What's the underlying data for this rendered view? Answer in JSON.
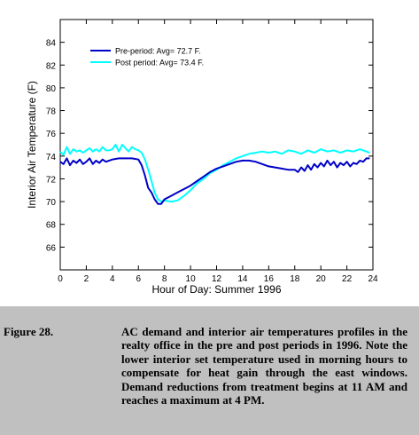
{
  "chart_data": {
    "type": "line",
    "title": "",
    "xlabel": "Hour of Day: Summer 1996",
    "ylabel": "Interior Air Temperature (F)",
    "xlim": [
      0,
      24
    ],
    "ylim": [
      64,
      86
    ],
    "xticks": [
      0,
      2,
      4,
      6,
      8,
      10,
      12,
      14,
      16,
      18,
      20,
      22,
      24
    ],
    "yticks": [
      66,
      68,
      70,
      72,
      74,
      76,
      78,
      80,
      82,
      84
    ],
    "grid": false,
    "legend_position": "top-left",
    "series": [
      {
        "name": "Pre-period: Avg= 72.7 F.",
        "color": "#0000c8",
        "x": [
          0,
          0.25,
          0.5,
          0.75,
          1,
          1.25,
          1.5,
          1.75,
          2,
          2.25,
          2.5,
          2.75,
          3,
          3.25,
          3.5,
          3.75,
          4,
          4.5,
          5,
          5.5,
          6,
          6.25,
          6.5,
          6.75,
          7,
          7.25,
          7.5,
          7.75,
          8,
          8.5,
          9,
          9.5,
          10,
          10.5,
          11,
          11.5,
          12,
          12.5,
          13,
          13.5,
          14,
          14.5,
          15,
          15.5,
          16,
          16.5,
          17,
          17.5,
          18,
          18.25,
          18.5,
          18.75,
          19,
          19.25,
          19.5,
          19.75,
          20,
          20.25,
          20.5,
          20.75,
          21,
          21.25,
          21.5,
          21.75,
          22,
          22.25,
          22.5,
          22.75,
          23,
          23.25,
          23.5,
          23.75
        ],
        "y": [
          73.5,
          73.3,
          73.8,
          73.2,
          73.6,
          73.4,
          73.7,
          73.3,
          73.5,
          73.8,
          73.3,
          73.6,
          73.4,
          73.7,
          73.5,
          73.6,
          73.7,
          73.8,
          73.8,
          73.8,
          73.7,
          73.2,
          72.3,
          71.2,
          70.8,
          70.2,
          69.8,
          69.8,
          70.2,
          70.5,
          70.8,
          71.1,
          71.4,
          71.8,
          72.2,
          72.6,
          72.9,
          73.1,
          73.3,
          73.5,
          73.6,
          73.6,
          73.5,
          73.3,
          73.1,
          73.0,
          72.9,
          72.8,
          72.8,
          72.6,
          73.0,
          72.7,
          73.2,
          72.8,
          73.3,
          73.0,
          73.4,
          73.1,
          73.6,
          73.2,
          73.5,
          73.0,
          73.4,
          73.2,
          73.5,
          73.1,
          73.4,
          73.3,
          73.6,
          73.5,
          73.8,
          73.8
        ]
      },
      {
        "name": "Post period: Avg= 73.4 F.",
        "color": "#00ffff",
        "x": [
          0,
          0.25,
          0.5,
          0.75,
          1,
          1.25,
          1.5,
          1.75,
          2,
          2.25,
          2.5,
          2.75,
          3,
          3.25,
          3.5,
          3.75,
          4,
          4.25,
          4.5,
          4.75,
          5,
          5.25,
          5.5,
          5.75,
          6,
          6.25,
          6.5,
          6.75,
          7,
          7.25,
          7.5,
          7.75,
          8,
          8.5,
          9,
          9.5,
          10,
          10.5,
          11,
          11.5,
          12,
          12.5,
          13,
          13.5,
          14,
          14.5,
          15,
          15.5,
          16,
          16.5,
          17,
          17.5,
          18,
          18.5,
          19,
          19.5,
          20,
          20.5,
          21,
          21.5,
          22,
          22.5,
          23,
          23.5,
          23.75
        ],
        "y": [
          74.4,
          74.1,
          74.8,
          74.2,
          74.6,
          74.4,
          74.5,
          74.3,
          74.5,
          74.7,
          74.4,
          74.6,
          74.4,
          74.8,
          74.5,
          74.5,
          74.6,
          75.0,
          74.4,
          75.0,
          74.7,
          74.4,
          74.8,
          74.6,
          74.5,
          74.3,
          73.7,
          72.8,
          71.8,
          70.8,
          70.2,
          70.0,
          70.1,
          70.0,
          70.1,
          70.5,
          71.0,
          71.6,
          72.0,
          72.5,
          72.8,
          73.2,
          73.5,
          73.8,
          74.0,
          74.2,
          74.3,
          74.4,
          74.3,
          74.4,
          74.2,
          74.5,
          74.4,
          74.2,
          74.5,
          74.3,
          74.6,
          74.4,
          74.5,
          74.3,
          74.5,
          74.4,
          74.6,
          74.4,
          74.3
        ]
      }
    ]
  },
  "caption": {
    "figure_number": "Figure 28.",
    "text": "AC demand and interior air temperatures profiles in the realty office in the pre and post periods in 1996. Note the lower interior set temperature used in morning hours to compensate for heat gain through the east windows. Demand reductions from treatment begins at 11 AM and reaches a maximum at 4 PM."
  }
}
